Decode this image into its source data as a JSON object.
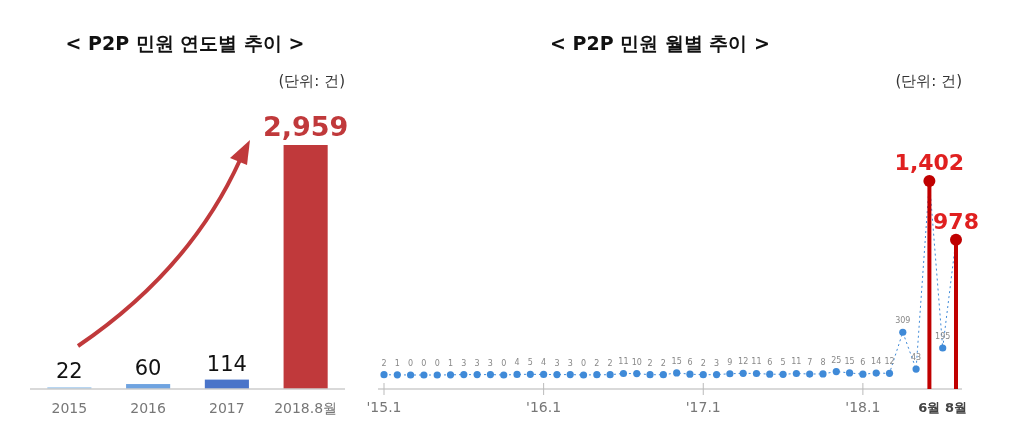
{
  "chart_data": [
    {
      "type": "bar",
      "title": "< P2P 민원 연도별 추이 >",
      "annotations": [
        "(단위: 건)"
      ],
      "categories": [
        "2015",
        "2016",
        "2017",
        "2018.8월"
      ],
      "values": [
        22,
        60,
        114,
        2959
      ],
      "colors": [
        "#a9cdf0",
        "#6fa3e0",
        "#4a74c9",
        "#c0393b"
      ],
      "value_labels": [
        "22",
        "60",
        "114",
        "2,959"
      ]
    },
    {
      "type": "line",
      "title": "< P2P 민원 월별 추이 >",
      "annotations": [
        "(단위: 건)"
      ],
      "categories": [
        "'15.1",
        null,
        null,
        null,
        null,
        null,
        null,
        null,
        null,
        null,
        null,
        null,
        "'16.1",
        null,
        null,
        null,
        null,
        null,
        null,
        null,
        null,
        null,
        null,
        null,
        "'17.1",
        null,
        null,
        null,
        null,
        null,
        null,
        null,
        null,
        null,
        null,
        null,
        "'18.1",
        null,
        null,
        null,
        null,
        "6월",
        null,
        "8월"
      ],
      "marker": "circle",
      "line_style": "dotted",
      "series": [
        {
          "color": "#3f8ad8",
          "values": [
            2,
            1,
            0,
            0,
            0,
            1,
            3,
            3,
            3,
            0,
            4,
            5,
            4,
            3,
            3,
            0,
            2,
            2,
            11,
            10,
            2,
            2,
            15,
            6,
            2,
            3,
            9,
            12,
            11,
            6,
            5,
            11,
            7,
            8,
            25,
            15,
            6,
            14,
            12,
            309,
            43,
            1402,
            195,
            978
          ],
          "value_labels": [
            "2",
            "1",
            "0",
            "0",
            "0",
            "1",
            "3",
            "3",
            "3",
            "0",
            "4",
            "5",
            "4",
            "3",
            "3",
            "0",
            "2",
            "2",
            "11",
            "10",
            "2",
            "2",
            "15",
            "6",
            "2",
            "3",
            "9",
            "12",
            "11",
            "6",
            "5",
            "11",
            "7",
            "8",
            "25",
            "15",
            "6",
            "14",
            "12",
            "309",
            "43",
            null,
            "195",
            null
          ]
        },
        {
          "type": "lollipop",
          "color": "#c00000",
          "values": [
            null,
            null,
            null,
            null,
            null,
            null,
            null,
            null,
            null,
            null,
            null,
            null,
            null,
            null,
            null,
            null,
            null,
            null,
            null,
            null,
            null,
            null,
            null,
            null,
            null,
            null,
            null,
            null,
            null,
            null,
            null,
            null,
            null,
            null,
            null,
            null,
            null,
            null,
            null,
            null,
            null,
            1402,
            null,
            978
          ],
          "value_labels": [
            null,
            null,
            null,
            null,
            null,
            null,
            null,
            null,
            null,
            null,
            null,
            null,
            null,
            null,
            null,
            null,
            null,
            null,
            null,
            null,
            null,
            null,
            null,
            null,
            null,
            null,
            null,
            null,
            null,
            null,
            null,
            null,
            null,
            null,
            null,
            null,
            null,
            null,
            null,
            null,
            null,
            "1,402",
            null,
            "978"
          ]
        }
      ]
    }
  ]
}
